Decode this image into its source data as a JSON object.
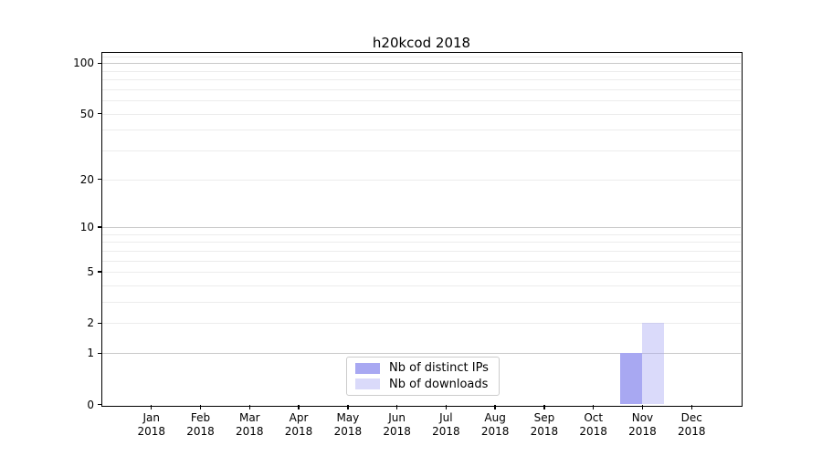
{
  "title": "h20kcod 2018",
  "chart_data": {
    "type": "bar",
    "title": "h20kcod 2018",
    "categories": [
      "Jan",
      "Feb",
      "Mar",
      "Apr",
      "May",
      "Jun",
      "Jul",
      "Aug",
      "Sep",
      "Oct",
      "Nov",
      "Dec"
    ],
    "year": "2018",
    "series": [
      {
        "name": "Nb of distinct IPs",
        "color": "#a8a8f2",
        "values": [
          0,
          0,
          0,
          0,
          0,
          0,
          0,
          0,
          0,
          0,
          1,
          0
        ]
      },
      {
        "name": "Nb of downloads",
        "color": "rgba(168,168,242,0.42)",
        "values": [
          0,
          0,
          0,
          0,
          0,
          0,
          0,
          0,
          0,
          0,
          2,
          0
        ]
      }
    ],
    "yscale": "log1p",
    "ylim": [
      0,
      115
    ],
    "ytick_labels": [
      "0",
      "1",
      "2",
      "5",
      "10",
      "20",
      "50",
      "100"
    ],
    "major_gridlines": [
      1,
      10,
      100
    ],
    "minor_gridlines": [
      2,
      3,
      4,
      5,
      6,
      7,
      8,
      9,
      20,
      30,
      40,
      50,
      60,
      70,
      80,
      90,
      110
    ],
    "grid": "horizontal only",
    "legend_position": "lower center"
  },
  "colors": {
    "background": "#ffffff",
    "axis": "#000000",
    "major_grid": "#c9c9c9",
    "minor_grid": "#ececec",
    "bar_distinct_ips": "#a8a8f2",
    "bar_downloads_composited": "#d9d9f8"
  }
}
